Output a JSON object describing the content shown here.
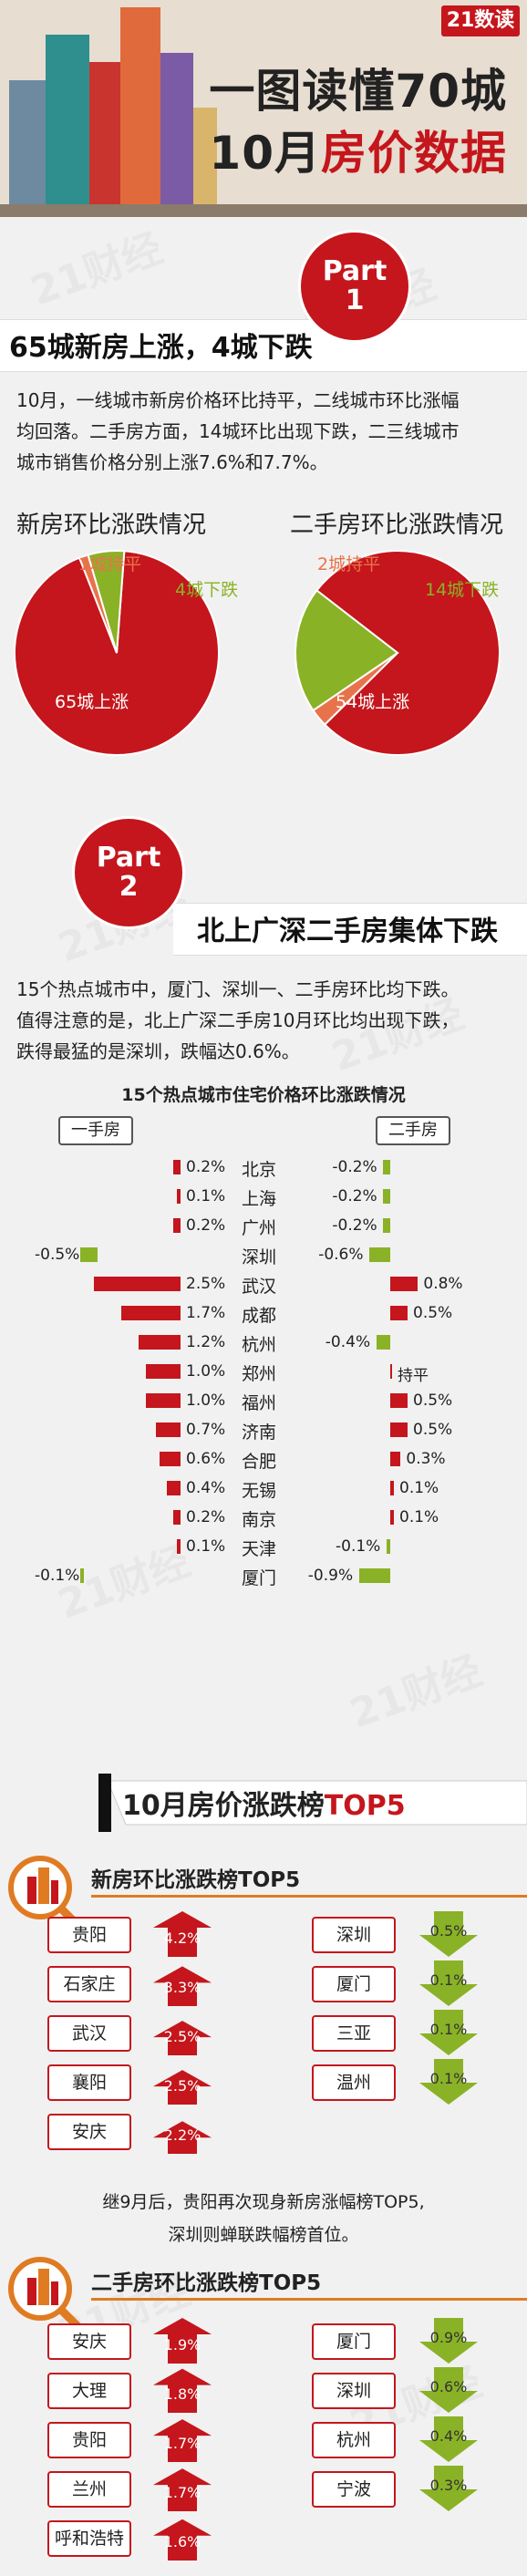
{
  "header": {
    "brand": "21数读",
    "title_line1": "一图读懂70城",
    "title_line2_a": "10月",
    "title_line2_b": "房价数据"
  },
  "part1": {
    "badge_word": "Part",
    "badge_num": "1",
    "banner": "65城新房上涨，4城下跌",
    "para": [
      "10月，一线城市新房价格环比持平，二线城市环比涨幅",
      "均回落。二手房方面，14城环比出现下跌，二三线城市",
      "城市销售价格分别上涨7.6%和7.7%。"
    ]
  },
  "part2": {
    "badge_word": "Part",
    "badge_num": "2",
    "banner": "北上广深二手房集体下跌",
    "para": [
      "15个热点城市中，厦门、深圳一、二手房环比均下跌。",
      "值得注意的是，北上广深二手房10月环比均出现下跌，",
      "跌得最猛的是深圳，跌幅达0.6%。"
    ]
  },
  "top5": {
    "section_title": "10月房价涨跌榜",
    "section_title_accent": "TOP5",
    "new_title": "新房环比涨跌榜TOP5",
    "second_title": "二手房环比涨跌榜TOP5",
    "note_line1": "继9月后，贵阳再次现身新房涨幅榜TOP5,",
    "note_line2": "深圳则蝉联跌幅榜首位。"
  },
  "chart_data": [
    {
      "type": "pie",
      "title": "新房环比涨跌情况",
      "slices": [
        {
          "label": "65城上涨",
          "value": 65,
          "color": "#c4161c"
        },
        {
          "label": "1城持平",
          "value": 1,
          "color": "#e8734a"
        },
        {
          "label": "4城下跌",
          "value": 4,
          "color": "#8ab226"
        }
      ]
    },
    {
      "type": "pie",
      "title": "二手房环比涨跌情况",
      "slices": [
        {
          "label": "54城上涨",
          "value": 54,
          "color": "#c4161c"
        },
        {
          "label": "2城持平",
          "value": 2,
          "color": "#e8734a"
        },
        {
          "label": "14城下跌",
          "value": 14,
          "color": "#8ab226"
        }
      ]
    },
    {
      "type": "bar",
      "title": "15个热点城市住宅价格环比涨跌情况",
      "categories": [
        "北京",
        "上海",
        "广州",
        "深圳",
        "武汉",
        "成都",
        "杭州",
        "郑州",
        "福州",
        "济南",
        "合肥",
        "无锡",
        "南京",
        "天津",
        "厦门"
      ],
      "series": [
        {
          "name": "一手房",
          "values": [
            0.2,
            0.1,
            0.2,
            -0.5,
            2.5,
            1.7,
            1.2,
            1.0,
            1.0,
            0.7,
            0.6,
            0.4,
            0.2,
            0.1,
            -0.1
          ],
          "labels": [
            "0.2%",
            "0.1%",
            "0.2%",
            "-0.5%",
            "2.5%",
            "1.7%",
            "1.2%",
            "1.0%",
            "1.0%",
            "0.7%",
            "0.6%",
            "0.4%",
            "0.2%",
            "0.1%",
            "-0.1%"
          ]
        },
        {
          "name": "二手房",
          "values": [
            -0.2,
            -0.2,
            -0.2,
            -0.6,
            0.8,
            0.5,
            -0.4,
            0,
            0.5,
            0.5,
            0.3,
            0.1,
            0.1,
            -0.1,
            -0.9
          ],
          "labels": [
            "-0.2%",
            "-0.2%",
            "-0.2%",
            "-0.6%",
            "0.8%",
            "0.5%",
            "-0.4%",
            "持平",
            "0.5%",
            "0.5%",
            "0.3%",
            "0.1%",
            "0.1%",
            "-0.1%",
            "-0.9%"
          ]
        }
      ],
      "colors": {
        "up": "#c4161c",
        "down": "#8ab226"
      }
    },
    {
      "type": "bar",
      "title": "新房环比涨跌榜TOP5",
      "rise": {
        "categories": [
          "贵阳",
          "石家庄",
          "武汉",
          "襄阳",
          "安庆"
        ],
        "values": [
          4.2,
          3.3,
          2.5,
          2.5,
          2.2
        ],
        "labels": [
          "4.2%",
          "3.3%",
          "2.5%",
          "2.5%",
          "2.2%"
        ]
      },
      "fall": {
        "categories": [
          "深圳",
          "厦门",
          "三亚",
          "温州"
        ],
        "values": [
          -0.5,
          -0.1,
          -0.1,
          -0.1
        ],
        "labels": [
          "0.5%",
          "0.1%",
          "0.1%",
          "0.1%"
        ]
      }
    },
    {
      "type": "bar",
      "title": "二手房环比涨跌榜TOP5",
      "rise": {
        "categories": [
          "安庆",
          "大理",
          "贵阳",
          "兰州",
          "呼和浩特"
        ],
        "values": [
          1.9,
          1.8,
          1.7,
          1.7,
          1.6
        ],
        "labels": [
          "1.9%",
          "1.8%",
          "1.7%",
          "1.7%",
          "1.6%"
        ]
      },
      "fall": {
        "categories": [
          "厦门",
          "深圳",
          "杭州",
          "宁波"
        ],
        "values": [
          -0.9,
          -0.6,
          -0.4,
          -0.3
        ],
        "labels": [
          "0.9%",
          "0.6%",
          "0.4%",
          "0.3%"
        ]
      }
    }
  ]
}
